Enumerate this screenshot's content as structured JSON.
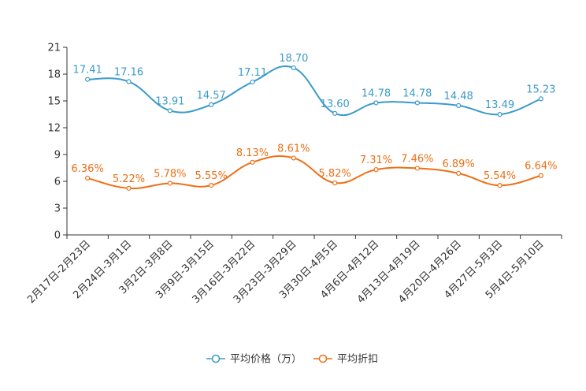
{
  "chart_data": {
    "type": "line",
    "title": "",
    "xlabel": "",
    "ylabel": "",
    "ylim": [
      0,
      21
    ],
    "yticks": [
      "0",
      "3",
      "6",
      "9",
      "12",
      "15",
      "18",
      "21"
    ],
    "categories": [
      "2月17日-2月23日",
      "2月24日-3月1日",
      "3月2日-3月8日",
      "3月9日-3月15日",
      "3月16日-3月22日",
      "3月23日-3月29日",
      "3月30日-4月5日",
      "4月6日-4月12日",
      "4月13日-4月19日",
      "4月20日-4月26日",
      "4月27日-5月3日",
      "5月4日-5月10日"
    ],
    "series": [
      {
        "name": "平均价格（万）",
        "color": "#3a9bc9",
        "values": [
          17.41,
          17.16,
          13.91,
          14.57,
          17.11,
          18.7,
          13.6,
          14.78,
          14.78,
          14.48,
          13.49,
          15.23
        ],
        "labels": [
          "17.41",
          "17.16",
          "13.91",
          "14.57",
          "17.11",
          "18.70",
          "13.60",
          "14.78",
          "14.78",
          "14.48",
          "13.49",
          "15.23"
        ]
      },
      {
        "name": "平均折扣",
        "color": "#ee6f15",
        "values": [
          6.36,
          5.22,
          5.78,
          5.55,
          8.13,
          8.61,
          5.82,
          7.31,
          7.46,
          6.89,
          5.54,
          6.64
        ],
        "labels": [
          "6.36%",
          "5.22%",
          "5.78%",
          "5.55%",
          "8.13%",
          "8.61%",
          "5.82%",
          "7.31%",
          "7.46%",
          "6.89%",
          "5.54%",
          "6.64%"
        ]
      }
    ],
    "grid": false,
    "legend_position": "bottom-center"
  }
}
